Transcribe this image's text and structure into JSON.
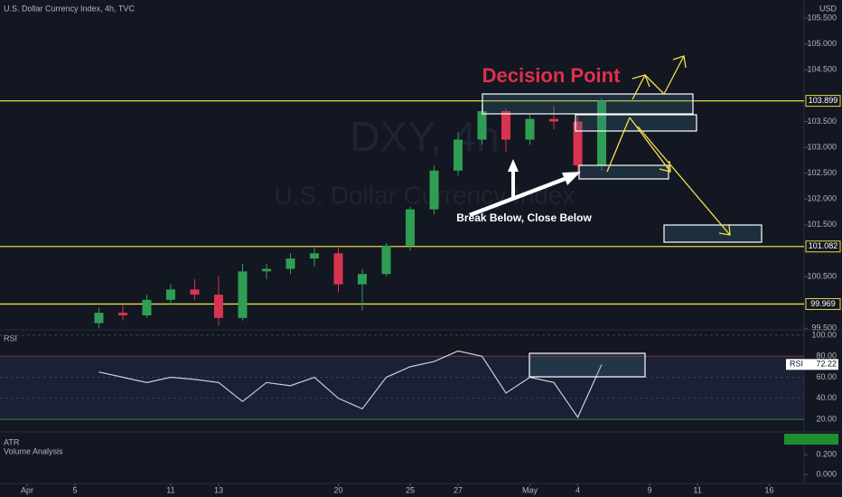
{
  "chart_data": {
    "type": "candlestick",
    "title": "U.S. Dollar Currency Index, 4h, TVC",
    "currency": "USD",
    "watermark": [
      "DXY, 4h",
      "U.S. Dollar Currency Index"
    ],
    "annotations": [
      "Decision Point",
      "Break Below, Close Below"
    ],
    "x": [
      3,
      4,
      5,
      6,
      7,
      8,
      9,
      10,
      11,
      12,
      13,
      14,
      15,
      16,
      17,
      18,
      19,
      20,
      21,
      22,
      23,
      24
    ],
    "open": [
      99.6,
      99.8,
      99.75,
      100.05,
      100.25,
      100.15,
      99.7,
      100.6,
      100.65,
      100.85,
      100.95,
      100.35,
      100.55,
      101.1,
      101.8,
      102.55,
      103.15,
      103.7,
      103.15,
      103.55,
      103.5,
      102.65
    ],
    "high": [
      99.9,
      99.95,
      100.15,
      100.35,
      100.45,
      100.5,
      100.75,
      100.75,
      100.95,
      101.05,
      101.1,
      100.65,
      101.15,
      101.85,
      102.65,
      103.3,
      103.85,
      103.75,
      103.65,
      103.8,
      103.6,
      103.95
    ],
    "low": [
      99.5,
      99.65,
      99.7,
      99.95,
      100.05,
      99.55,
      99.65,
      100.45,
      100.55,
      100.7,
      100.2,
      99.85,
      100.5,
      101.0,
      101.7,
      102.45,
      103.05,
      102.9,
      103.05,
      103.35,
      102.45,
      102.55
    ],
    "close": [
      99.8,
      99.75,
      100.05,
      100.25,
      100.15,
      99.7,
      100.6,
      100.65,
      100.85,
      100.95,
      100.35,
      100.55,
      101.1,
      101.8,
      102.55,
      103.15,
      103.7,
      103.15,
      103.55,
      103.5,
      102.65,
      103.9
    ],
    "up_color": "#2f9e55",
    "down_color": "#d8344f",
    "xlim": [
      -1.13,
      32.45
    ],
    "xticks": [
      {
        "value": 0,
        "label": "Apr"
      },
      {
        "value": 2,
        "label": "5"
      },
      {
        "value": 6,
        "label": "11"
      },
      {
        "value": 8,
        "label": "13"
      },
      {
        "value": 13,
        "label": "20"
      },
      {
        "value": 16,
        "label": "25"
      },
      {
        "value": 18,
        "label": "27"
      },
      {
        "value": 21,
        "label": "May"
      },
      {
        "value": 23,
        "label": "4"
      },
      {
        "value": 26,
        "label": "9"
      },
      {
        "value": 28,
        "label": "11"
      },
      {
        "value": 31,
        "label": "16"
      }
    ],
    "ylim": [
      99.47,
      105.85
    ],
    "yticks": [
      {
        "value": 105.5,
        "label": "105.500"
      },
      {
        "value": 105,
        "label": "105.000"
      },
      {
        "value": 104.5,
        "label": "104.500"
      },
      {
        "value": 103.5,
        "label": "103.500"
      },
      {
        "value": 103,
        "label": "103.000"
      },
      {
        "value": 102.5,
        "label": "102.500"
      },
      {
        "value": 102,
        "label": "102.000"
      },
      {
        "value": 101.5,
        "label": "101.500"
      },
      {
        "value": 100.5,
        "label": "100.500"
      },
      {
        "value": 99.5,
        "label": "99.500"
      }
    ],
    "levels": [
      103.899,
      101.082,
      99.969
    ],
    "level_color": "#e8d84a",
    "rsi": {
      "name": "RSI",
      "color": "#cfcfcf",
      "values": [
        65,
        60,
        55,
        60,
        58,
        55,
        37,
        55,
        52,
        60,
        40,
        30,
        60,
        70,
        75,
        85,
        80,
        45,
        60,
        55,
        22,
        72.22
      ],
      "ylim": [
        8.9,
        103.4
      ],
      "yticks": [
        {
          "value": 100,
          "label": "100.00"
        },
        {
          "value": 80,
          "label": "80.00"
        },
        {
          "value": 60,
          "label": "60.00"
        },
        {
          "value": 40,
          "label": "40.00"
        },
        {
          "value": 20,
          "label": "20.00"
        }
      ]
    },
    "atr": {
      "name": "ATR",
      "subtitle": "Volume Analysis",
      "ylim": [
        -0.09,
        0.43
      ],
      "yticks": [
        {
          "value": 0.2,
          "label": "0.200"
        },
        {
          "value": 0,
          "label": "0.000"
        }
      ]
    }
  }
}
